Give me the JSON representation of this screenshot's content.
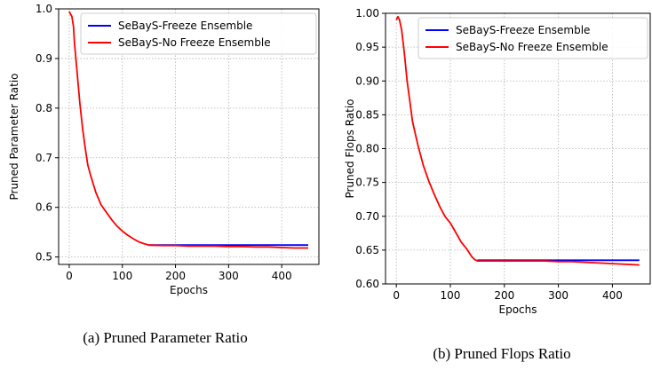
{
  "chart_data": [
    {
      "type": "line",
      "caption": "(a) Pruned Parameter Ratio",
      "xlabel": "Epochs",
      "ylabel": "Pruned Parameter Ratio",
      "xlim": [
        -20,
        470
      ],
      "ylim": [
        0.485,
        1.0
      ],
      "xticks": [
        0,
        100,
        200,
        300,
        400
      ],
      "yticks": [
        0.5,
        0.6,
        0.7,
        0.8,
        0.9,
        1.0
      ],
      "ytick_labels": [
        "0.5",
        "0.6",
        "0.7",
        "0.8",
        "0.9",
        "1.0"
      ],
      "grid": true,
      "legend_position": "upper-right",
      "series": [
        {
          "name": "SeBayS-Freeze Ensemble",
          "color": "#0000ff",
          "x": [
            150,
            450
          ],
          "y": [
            0.524,
            0.524
          ]
        },
        {
          "name": "SeBayS-No Freeze Ensemble",
          "color": "#ff0000",
          "x": [
            0,
            2,
            5,
            8,
            10,
            15,
            20,
            25,
            30,
            35,
            40,
            50,
            60,
            70,
            80,
            90,
            100,
            110,
            120,
            130,
            140,
            150,
            175,
            200,
            225,
            250,
            275,
            300,
            325,
            350,
            375,
            400,
            425,
            450
          ],
          "y": [
            0.995,
            0.99,
            0.985,
            0.965,
            0.93,
            0.87,
            0.81,
            0.76,
            0.72,
            0.685,
            0.665,
            0.63,
            0.605,
            0.59,
            0.575,
            0.562,
            0.552,
            0.544,
            0.537,
            0.531,
            0.527,
            0.524,
            0.523,
            0.523,
            0.522,
            0.522,
            0.522,
            0.521,
            0.521,
            0.52,
            0.52,
            0.519,
            0.518,
            0.518
          ]
        }
      ]
    },
    {
      "type": "line",
      "caption": "(b) Pruned Flops Ratio",
      "xlabel": "Epochs",
      "ylabel": "Pruned Flops Ratio",
      "xlim": [
        -20,
        470
      ],
      "ylim": [
        0.6,
        1.0
      ],
      "xticks": [
        0,
        100,
        200,
        300,
        400
      ],
      "yticks": [
        0.6,
        0.65,
        0.7,
        0.75,
        0.8,
        0.85,
        0.9,
        0.95,
        1.0
      ],
      "ytick_labels": [
        "0.60",
        "0.65",
        "0.70",
        "0.75",
        "0.80",
        "0.85",
        "0.90",
        "0.95",
        "1.00"
      ],
      "grid": true,
      "legend_position": "upper-right",
      "series": [
        {
          "name": "SeBayS-Freeze Ensemble",
          "color": "#0000ff",
          "x": [
            150,
            450
          ],
          "y": [
            0.635,
            0.635
          ]
        },
        {
          "name": "SeBayS-No Freeze Ensemble",
          "color": "#ff0000",
          "x": [
            0,
            3,
            6,
            10,
            15,
            20,
            25,
            30,
            40,
            50,
            60,
            70,
            80,
            90,
            100,
            110,
            120,
            130,
            140,
            145,
            150,
            175,
            200,
            225,
            250,
            275,
            300,
            325,
            350,
            375,
            400,
            425,
            450
          ],
          "y": [
            0.99,
            0.995,
            0.99,
            0.975,
            0.94,
            0.9,
            0.87,
            0.84,
            0.805,
            0.775,
            0.752,
            0.733,
            0.715,
            0.7,
            0.69,
            0.676,
            0.662,
            0.652,
            0.64,
            0.636,
            0.634,
            0.634,
            0.634,
            0.634,
            0.634,
            0.634,
            0.633,
            0.633,
            0.632,
            0.631,
            0.63,
            0.629,
            0.628
          ]
        }
      ]
    }
  ]
}
